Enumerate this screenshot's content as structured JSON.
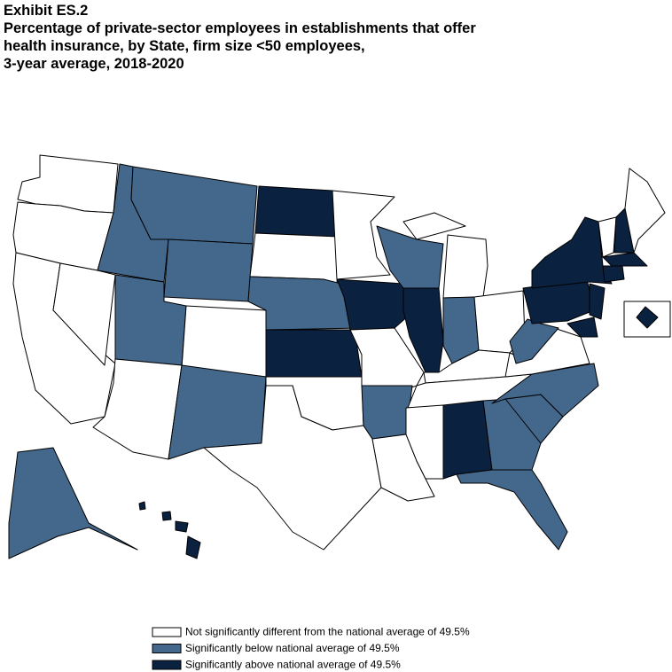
{
  "header": {
    "exhibit": "Exhibit ES.2",
    "title": [
      "Percentage of private-sector employees in establishments that offer",
      "health insurance, by State, firm size <50 employees,",
      "3-year average, 2018-2020"
    ]
  },
  "legend": {
    "items": [
      {
        "label": "Not significantly different from the national average of 49.5%",
        "color": "#ffffff"
      },
      {
        "label": "Significantly below national average of 49.5%",
        "color": "#44688c"
      },
      {
        "label": "Significantly above national average of 49.5%",
        "color": "#0b2140"
      }
    ]
  }
}
